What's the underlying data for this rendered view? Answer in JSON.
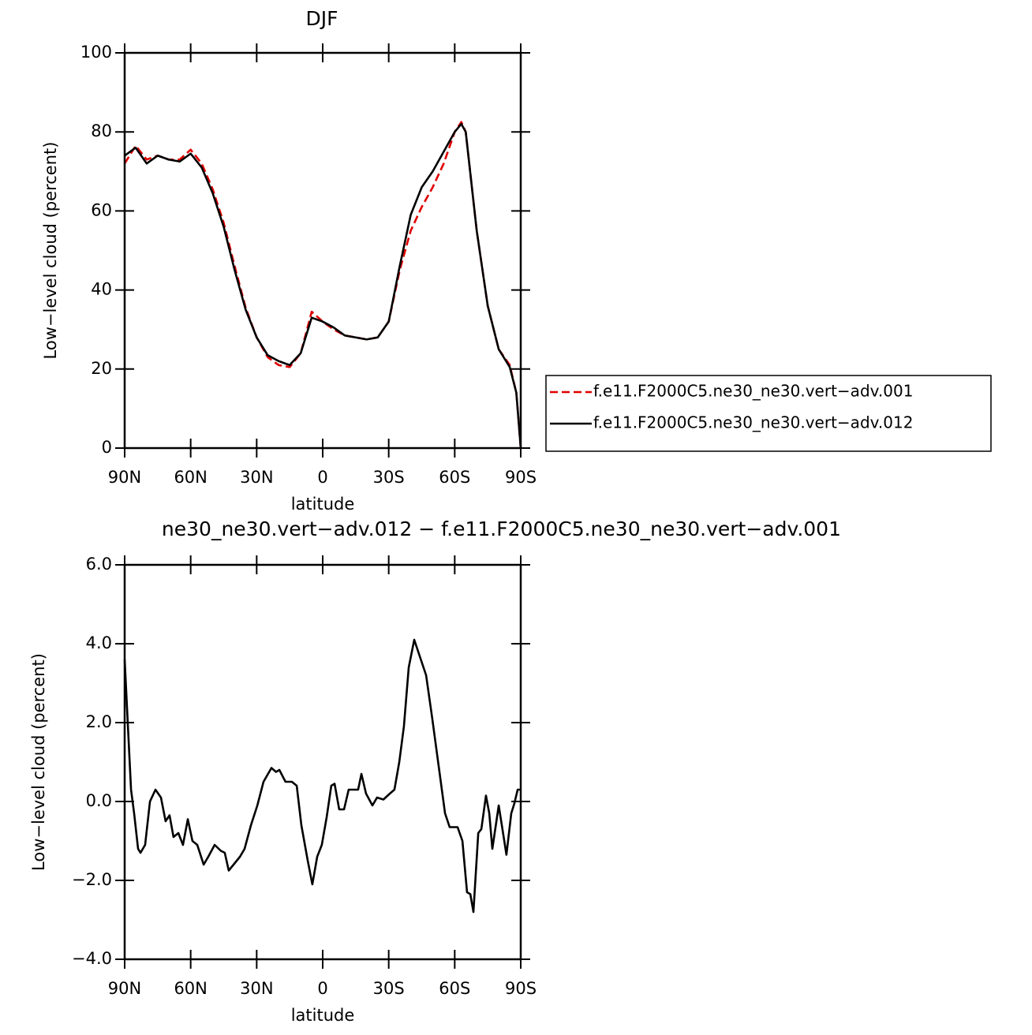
{
  "chart_data": [
    {
      "type": "line",
      "title": "DJF",
      "x_label": "latitude",
      "y_label": "Low−level cloud (percent)",
      "x": [
        90,
        85,
        80,
        75,
        70,
        65,
        60,
        55,
        50,
        45,
        40,
        35,
        30,
        25,
        20,
        15,
        10,
        5,
        0,
        -5,
        -10,
        -15,
        -20,
        -25,
        -30,
        -35,
        -40,
        -45,
        -50,
        -55,
        -60,
        -63,
        -65,
        -70,
        -75,
        -80,
        -85,
        -88,
        -90
      ],
      "series": [
        {
          "name": "f.e11.F2000C5.ne30_ne30.vert−adv.001",
          "color": "#e00000",
          "line_style": "dashed",
          "values": [
            72,
            76.5,
            73,
            74,
            73,
            73,
            75.5,
            72,
            65.5,
            57,
            46,
            35.5,
            28,
            23,
            21,
            20.5,
            24,
            34.5,
            32,
            30,
            28.5,
            28,
            27.5,
            28,
            32,
            45,
            55,
            61,
            66,
            72,
            80,
            82.5,
            80,
            55,
            36,
            25,
            21,
            14,
            0
          ]
        },
        {
          "name": "f.e11.F2000C5.ne30_ne30.vert−adv.012",
          "color": "#000000",
          "line_style": "solid",
          "values": [
            74,
            76,
            72,
            74,
            73,
            72.5,
            74.5,
            71,
            64.5,
            56,
            45,
            35,
            28,
            23.5,
            22,
            21,
            24,
            33,
            32,
            30.5,
            28.5,
            28,
            27.5,
            28,
            32,
            46,
            59,
            66,
            70,
            75,
            80,
            82,
            80,
            55,
            36,
            25,
            20.5,
            14,
            0
          ]
        }
      ],
      "xlim": [
        90,
        -90
      ],
      "xticks": [
        {
          "value": 90,
          "label": "90N"
        },
        {
          "value": 60,
          "label": "60N"
        },
        {
          "value": 30,
          "label": "30N"
        },
        0,
        {
          "value": -30,
          "label": "30S"
        },
        {
          "value": -60,
          "label": "60S"
        },
        {
          "value": -90,
          "label": "90S"
        }
      ],
      "ylim": [
        0,
        100
      ],
      "yticks": [
        0,
        20,
        40,
        60,
        80,
        100
      ],
      "grid": false,
      "legend": "right"
    },
    {
      "type": "line",
      "title": "ne30_ne30.vert−adv.012 − f.e11.F2000C5.ne30_ne30.vert−adv.001",
      "x_label": "latitude",
      "y_label": "Low−level cloud (percent)",
      "x": [
        90.0,
        88.6,
        87.1,
        85.7,
        83.9,
        82.8,
        80.7,
        78.5,
        76.0,
        73.5,
        71.4,
        69.6,
        67.8,
        65.6,
        63.5,
        61.3,
        59.2,
        57.0,
        54.1,
        52.0,
        49.1,
        46.3,
        44.5,
        42.7,
        40.5,
        37.6,
        35.5,
        32.6,
        29.7,
        26.9,
        23.3,
        21.2,
        19.7,
        16.9,
        14.0,
        11.8,
        9.7,
        6.8,
        4.7,
        2.5,
        0.4,
        -1.8,
        -3.9,
        -5.4,
        -7.5,
        -9.7,
        -11.8,
        -14.0,
        -16.1,
        -17.6,
        -19.7,
        -22.6,
        -24.7,
        -27.6,
        -30.5,
        -32.6,
        -34.8,
        -36.9,
        -39.1,
        -41.6,
        -43.4,
        -47.0,
        -49.8,
        -52.7,
        -55.6,
        -57.7,
        -61.3,
        -63.5,
        -65.6,
        -67.1,
        -68.5,
        -70.7,
        -72.1,
        -74.2,
        -75.7,
        -77.1,
        -80.0,
        -81.4,
        -83.5,
        -85.7,
        -87.1,
        -88.6,
        -90.0
      ],
      "values": [
        3.6,
        2.0,
        0.3,
        -0.3,
        -1.2,
        -1.3,
        -1.1,
        0,
        0.3,
        0.1,
        -0.5,
        -0.35,
        -0.9,
        -0.8,
        -1.1,
        -0.45,
        -1.0,
        -1.1,
        -1.6,
        -1.4,
        -1.1,
        -1.25,
        -1.3,
        -1.75,
        -1.6,
        -1.4,
        -1.2,
        -0.6,
        -0.1,
        0.5,
        0.85,
        0.75,
        0.8,
        0.5,
        0.5,
        0.4,
        -0.6,
        -1.5,
        -2.1,
        -1.4,
        -1.1,
        -0.4,
        0.4,
        0.45,
        -0.2,
        -0.2,
        0.3,
        0.3,
        0.3,
        0.7,
        0.2,
        -0.1,
        0.1,
        0.05,
        0.2,
        0.3,
        1.0,
        1.9,
        3.4,
        4.1,
        3.8,
        3.2,
        2.1,
        0.9,
        -0.3,
        -0.65,
        -0.65,
        -1.0,
        -2.3,
        -2.35,
        -2.8,
        -0.8,
        -0.7,
        0.15,
        -0.3,
        -1.2,
        -0.1,
        -0.6,
        -1.35,
        -0.3,
        -0.05,
        0.3,
        0.3
      ],
      "color": "#000000",
      "xlim": [
        90,
        -90
      ],
      "xticks": [
        {
          "value": 90,
          "label": "90N"
        },
        {
          "value": 60,
          "label": "60N"
        },
        {
          "value": 30,
          "label": "30N"
        },
        0,
        {
          "value": -30,
          "label": "30S"
        },
        {
          "value": -60,
          "label": "60S"
        },
        {
          "value": -90,
          "label": "90S"
        }
      ],
      "ylim": [
        -4,
        6
      ],
      "yticks": [
        {
          "value": -4,
          "label": "−4.0"
        },
        {
          "value": -2,
          "label": "−2.0"
        },
        {
          "value": 0,
          "label": "0.0"
        },
        {
          "value": 2,
          "label": "2.0"
        },
        {
          "value": 4,
          "label": "4.0"
        },
        {
          "value": 6,
          "label": "6.0"
        }
      ],
      "grid": false
    }
  ]
}
